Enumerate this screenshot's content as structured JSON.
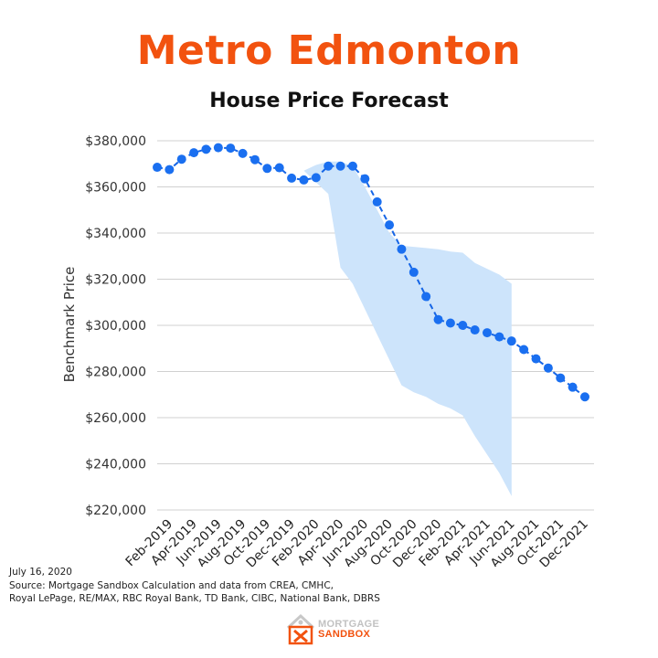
{
  "header": {
    "title": "Metro Edmonton",
    "subtitle": "House Price Forecast"
  },
  "chart_data": {
    "type": "line",
    "ylabel": "Benchmark Price",
    "xlabel": "",
    "ylim": [
      220000,
      380000
    ],
    "yticks": [
      380000,
      360000,
      340000,
      320000,
      300000,
      280000,
      260000,
      240000,
      220000
    ],
    "ytick_labels": [
      "$380,000",
      "$360,000",
      "$340,000",
      "$320,000",
      "$300,000",
      "$280,000",
      "$260,000",
      "$240,000",
      "$220,000"
    ],
    "x_tick_labels": [
      "Feb-2019",
      "Apr-2019",
      "Jun-2019",
      "Aug-2019",
      "Oct-2019",
      "Dec-2019",
      "Feb-2020",
      "Apr-2020",
      "Jun-2020",
      "Aug-2020",
      "Oct-2020",
      "Dec-2020",
      "Feb-2021",
      "Apr-2021",
      "Jun-2021",
      "Aug-2021",
      "Oct-2021",
      "Dec-2021"
    ],
    "grid": true,
    "series": [
      {
        "name": "Benchmark Price",
        "start_month": "Jan-2019",
        "values": [
          368500,
          367500,
          372000,
          374800,
          376300,
          377000,
          376800,
          374500,
          371800,
          368000,
          368300,
          363800,
          363000,
          364000,
          369000,
          369000,
          369000,
          363500,
          353500,
          343500,
          333000,
          323000,
          312500,
          302500,
          301000,
          300000,
          298000,
          296800,
          295000,
          293200,
          289500,
          285500,
          281500,
          277200,
          273200,
          269000
        ]
      }
    ],
    "confidence_band": {
      "start_month": "Jan-2020",
      "upper": [
        367000,
        369500,
        371000,
        371000,
        369000,
        360000,
        350000,
        340000,
        334500,
        334000,
        333500,
        333000,
        332000,
        331500,
        327000,
        324500,
        322000,
        318000
      ],
      "lower": [
        367000,
        362000,
        357000,
        325000,
        318000,
        307000,
        296000,
        285000,
        274000,
        271000,
        269000,
        266000,
        264000,
        261000,
        252000,
        244000,
        236000,
        226000
      ]
    },
    "colors": {
      "line": "#1565e6",
      "marker": "#1a6ff0",
      "band": "#cde4fb",
      "grid": "#d0d0d0"
    }
  },
  "footer": {
    "date": "July 16, 2020",
    "source_line1": "Source: Mortgage Sandbox Calculation and data from CREA, CMHC,",
    "source_line2": "Royal LePage, RE/MAX, RBC Royal Bank, TD Bank, CIBC, National Bank, DBRS"
  },
  "logo": {
    "line1": "MORTGAGE",
    "line2": "SANDBOX",
    "icon": "mortgage-sandbox-logo-icon"
  }
}
